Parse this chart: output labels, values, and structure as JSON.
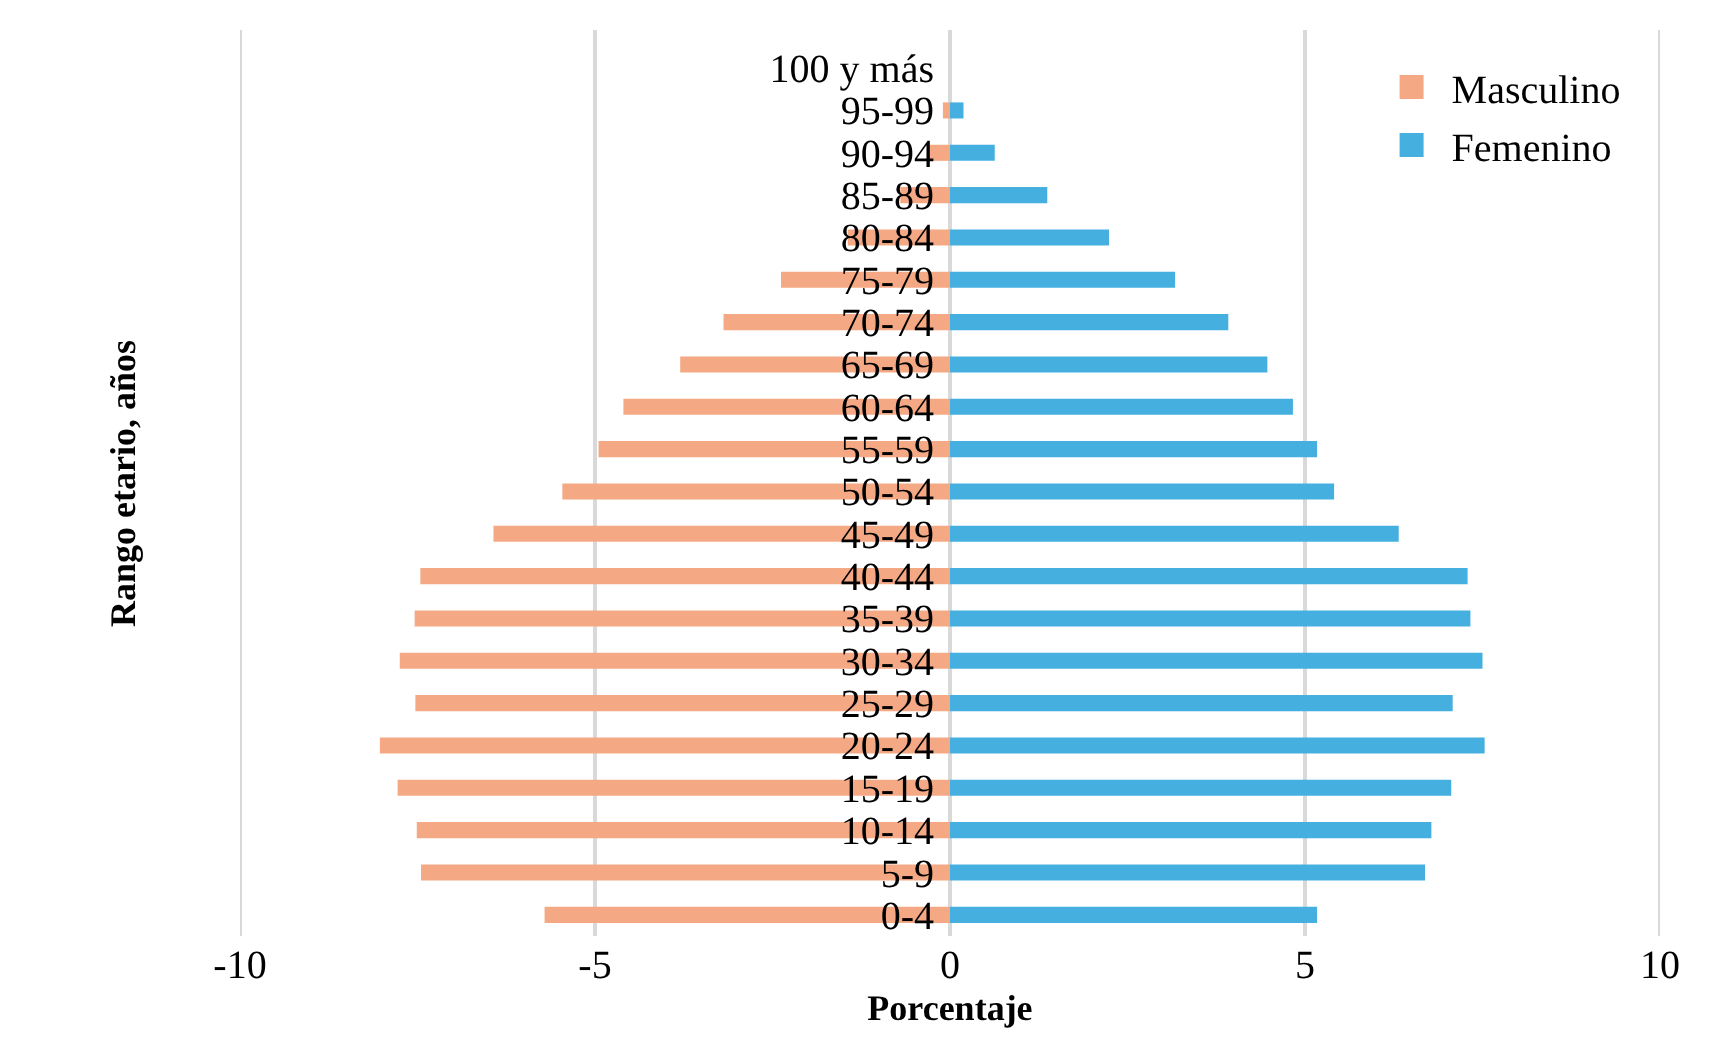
{
  "chart_data": {
    "type": "bar",
    "orientation": "horizontal",
    "xlabel": "Porcentaje",
    "ylabel": "Rango etario, años",
    "categories": [
      "100 y más",
      "95-99",
      "90-94",
      "85-89",
      "80-84",
      "75-79",
      "70-74",
      "65-69",
      "60-64",
      "55-59",
      "50-54",
      "45-49",
      "40-44",
      "35-39",
      "30-34",
      "25-29",
      "20-24",
      "15-19",
      "10-14",
      "5-9",
      "0-4"
    ],
    "series": [
      {
        "name": "Masculino",
        "color": "#f4a984",
        "values": [
          0,
          -0.1,
          -0.3,
          -0.7,
          -1.44,
          -2.38,
          -3.19,
          -3.8,
          -4.6,
          -4.95,
          -5.46,
          -6.43,
          -7.46,
          -7.54,
          -7.75,
          -7.53,
          -8.03,
          -7.78,
          -7.51,
          -7.45,
          -5.71
        ]
      },
      {
        "name": "Femenino",
        "color": "#45b0e0",
        "values": [
          0,
          0.19,
          0.63,
          1.37,
          2.24,
          3.17,
          3.92,
          4.47,
          4.83,
          5.17,
          5.41,
          6.32,
          7.29,
          7.33,
          7.5,
          7.08,
          7.53,
          7.06,
          6.78,
          6.69,
          5.17
        ]
      }
    ],
    "stacked": true,
    "xlim": [
      -10,
      10
    ],
    "xticks": [
      -10,
      -5,
      0,
      5,
      10
    ],
    "grid": "x",
    "legend": "top right"
  }
}
